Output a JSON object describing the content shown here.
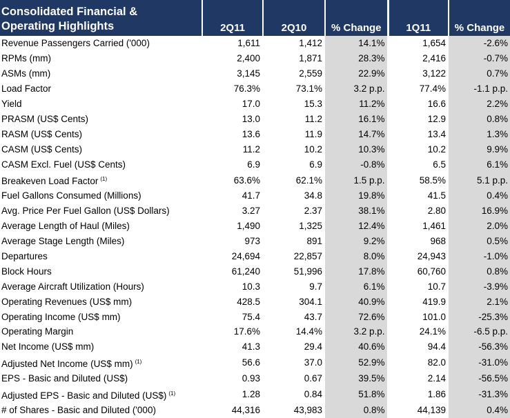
{
  "table": {
    "title_line1": "Consolidated Financial &",
    "title_line2": "Operating Highlights",
    "columns": [
      "2Q11",
      "2Q10",
      "% Change",
      "1Q11",
      "% Change"
    ],
    "rows": [
      {
        "label": "Revenue Passengers Carried ('000)",
        "note": "",
        "v": [
          "1,611",
          "1,412",
          "14.1%",
          "1,654",
          "-2.6%"
        ]
      },
      {
        "label": "RPMs (mm)",
        "note": "",
        "v": [
          "2,400",
          "1,871",
          "28.3%",
          "2,416",
          "-0.7%"
        ]
      },
      {
        "label": "ASMs (mm)",
        "note": "",
        "v": [
          "3,145",
          "2,559",
          "22.9%",
          "3,122",
          "0.7%"
        ]
      },
      {
        "label": "Load Factor",
        "note": "",
        "v": [
          "76.3%",
          "73.1%",
          "3.2 p.p.",
          "77.4%",
          "-1.1 p.p."
        ]
      },
      {
        "label": "Yield",
        "note": "",
        "v": [
          "17.0",
          "15.3",
          "11.2%",
          "16.6",
          "2.2%"
        ]
      },
      {
        "label": "PRASM (US$ Cents)",
        "note": "",
        "v": [
          "13.0",
          "11.2",
          "16.1%",
          "12.9",
          "0.8%"
        ]
      },
      {
        "label": "RASM (US$ Cents)",
        "note": "",
        "v": [
          "13.6",
          "11.9",
          "14.7%",
          "13.4",
          "1.3%"
        ]
      },
      {
        "label": "CASM (US$ Cents)",
        "note": "",
        "v": [
          "11.2",
          "10.2",
          "10.3%",
          "10.2",
          "9.9%"
        ]
      },
      {
        "label": "CASM Excl. Fuel (US$ Cents)",
        "note": "",
        "v": [
          "6.9",
          "6.9",
          "-0.8%",
          "6.5",
          "6.1%"
        ]
      },
      {
        "label": "Breakeven Load Factor",
        "note": "(1)",
        "v": [
          "63.6%",
          "62.1%",
          "1.5 p.p.",
          "58.5%",
          "5.1 p.p."
        ]
      },
      {
        "label": "Fuel Gallons Consumed (Millions)",
        "note": "",
        "v": [
          "41.7",
          "34.8",
          "19.8%",
          "41.5",
          "0.4%"
        ]
      },
      {
        "label": "Avg. Price Per Fuel Gallon (US$ Dollars)",
        "note": "",
        "v": [
          "3.27",
          "2.37",
          "38.1%",
          "2.80",
          "16.9%"
        ]
      },
      {
        "label": "Average Length of Haul (Miles)",
        "note": "",
        "v": [
          "1,490",
          "1,325",
          "12.4%",
          "1,461",
          "2.0%"
        ]
      },
      {
        "label": "Average Stage Length (Miles)",
        "note": "",
        "v": [
          "973",
          "891",
          "9.2%",
          "968",
          "0.5%"
        ]
      },
      {
        "label": "Departures",
        "note": "",
        "v": [
          "24,694",
          "22,857",
          "8.0%",
          "24,943",
          "-1.0%"
        ]
      },
      {
        "label": "Block Hours",
        "note": "",
        "v": [
          "61,240",
          "51,996",
          "17.8%",
          "60,760",
          "0.8%"
        ]
      },
      {
        "label": "Average Aircraft Utilization (Hours)",
        "note": "",
        "v": [
          "10.3",
          "9.7",
          "6.1%",
          "10.7",
          "-3.9%"
        ]
      },
      {
        "label": "Operating Revenues (US$ mm)",
        "note": "",
        "v": [
          "428.5",
          "304.1",
          "40.9%",
          "419.9",
          "2.1%"
        ]
      },
      {
        "label": "Operating Income (US$ mm)",
        "note": "",
        "v": [
          "75.4",
          "43.7",
          "72.6%",
          "101.0",
          "-25.3%"
        ]
      },
      {
        "label": "Operating Margin",
        "note": "",
        "v": [
          "17.6%",
          "14.4%",
          "3.2 p.p.",
          "24.1%",
          "-6.5 p.p."
        ]
      },
      {
        "label": "Net Income (US$ mm)",
        "note": "",
        "v": [
          "41.3",
          "29.4",
          "40.6%",
          "94.4",
          "-56.3%"
        ]
      },
      {
        "label": "Adjusted Net Income (US$ mm)",
        "note": "(1)",
        "v": [
          "56.6",
          "37.0",
          "52.9%",
          "82.0",
          "-31.0%"
        ]
      },
      {
        "label": "EPS - Basic and Diluted (US$)",
        "note": "",
        "v": [
          "0.93",
          "0.67",
          "39.5%",
          "2.14",
          "-56.5%"
        ]
      },
      {
        "label": "Adjusted EPS - Basic and Diluted (US$)",
        "note": "(1)",
        "v": [
          "1.28",
          "0.84",
          "51.8%",
          "1.86",
          "-31.3%"
        ]
      },
      {
        "label": "# of Shares - Basic and Diluted ('000)",
        "note": "",
        "v": [
          "44,316",
          "43,983",
          "0.8%",
          "44,139",
          "0.4%"
        ]
      }
    ]
  },
  "colors": {
    "header_bg": "#1f3864",
    "header_text": "#ffffff",
    "change_col_bg": "#d9d9d9"
  }
}
